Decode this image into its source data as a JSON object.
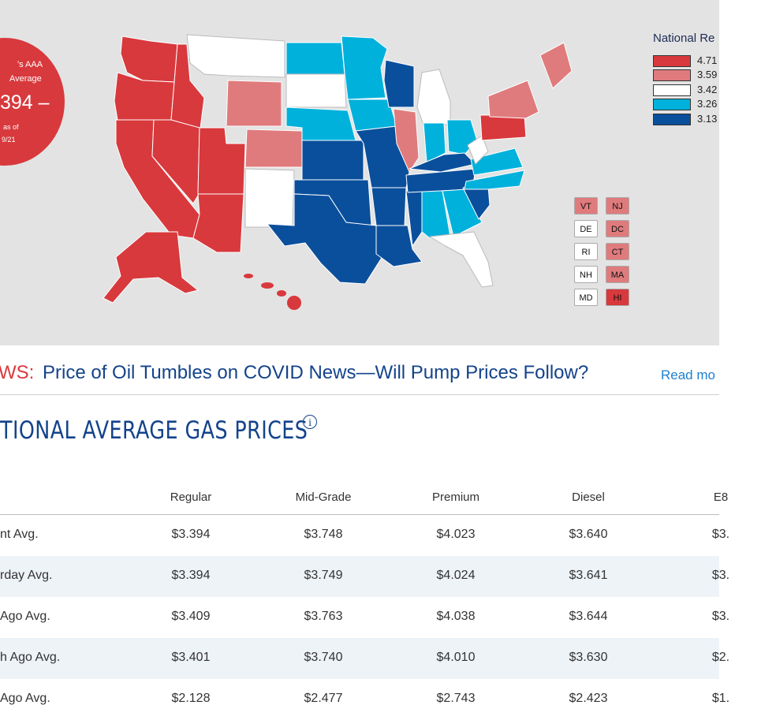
{
  "badge": {
    "line1": "'s AAA",
    "line2": "Average",
    "price": "394 –",
    "line3": "as of",
    "line4": "9/21"
  },
  "legend": {
    "title": "National Re",
    "items": [
      {
        "label": "4.71",
        "color": "#d8393d"
      },
      {
        "label": "3.59",
        "color": "#e07b7d"
      },
      {
        "label": "3.42",
        "color": "#ffffff"
      },
      {
        "label": "3.26",
        "color": "#00b1dc"
      },
      {
        "label": "3.13",
        "color": "#0a4f9c"
      }
    ]
  },
  "small_states": [
    {
      "abbr": "VT",
      "color": "#e07b7d"
    },
    {
      "abbr": "NJ",
      "color": "#e07b7d"
    },
    {
      "abbr": "DE",
      "color": "#ffffff"
    },
    {
      "abbr": "DC",
      "color": "#e07b7d"
    },
    {
      "abbr": "RI",
      "color": "#ffffff"
    },
    {
      "abbr": "CT",
      "color": "#e07b7d"
    },
    {
      "abbr": "NH",
      "color": "#ffffff"
    },
    {
      "abbr": "MA",
      "color": "#e07b7d"
    },
    {
      "abbr": "MD",
      "color": "#ffffff"
    },
    {
      "abbr": "HI",
      "color": "#d8393d"
    }
  ],
  "news": {
    "prefix": "WS:",
    "headline": "Price of Oil Tumbles on COVID News—Will Pump Prices Follow?",
    "read_more": "Read mo"
  },
  "section_title": "TIONAL AVERAGE GAS PRICES",
  "table": {
    "headers": [
      "Regular",
      "Mid-Grade",
      "Premium",
      "Diesel",
      "E8"
    ],
    "rows": [
      {
        "label": "nt Avg.",
        "values": [
          "$3.394",
          "$3.748",
          "$4.023",
          "$3.640",
          "$3."
        ]
      },
      {
        "label": "rday Avg.",
        "values": [
          "$3.394",
          "$3.749",
          "$4.024",
          "$3.641",
          "$3."
        ]
      },
      {
        "label": " Ago Avg.",
        "values": [
          "$3.409",
          "$3.763",
          "$4.038",
          "$3.644",
          "$3."
        ]
      },
      {
        "label": "h Ago Avg.",
        "values": [
          "$3.401",
          "$3.740",
          "$4.010",
          "$3.630",
          "$2."
        ]
      },
      {
        "label": "Ago Avg.",
        "values": [
          "$2.128",
          "$2.477",
          "$2.743",
          "$2.423",
          "$1."
        ]
      }
    ]
  }
}
